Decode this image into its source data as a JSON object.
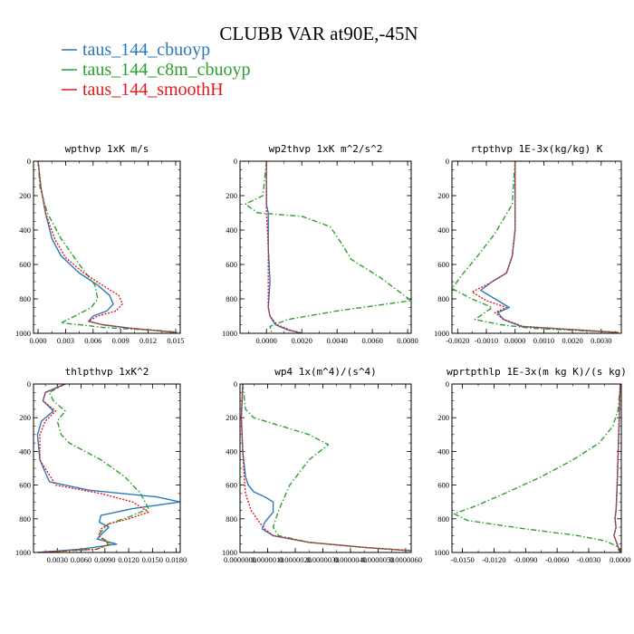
{
  "figure": {
    "title": "CLUBB VAR at90E,-45N",
    "legend": [
      {
        "label": "taus_144_cbuoyp",
        "color": "#2a7ab9",
        "dash": "solid"
      },
      {
        "label": "taus_144_c8m_cbuoyp",
        "color": "#2ca02c",
        "dash": "dashdot"
      },
      {
        "label": "taus_144_smoothH",
        "color": "#e31a1c",
        "dash": "dotted"
      }
    ]
  },
  "chart_data": [
    {
      "type": "line",
      "title": "wpthvp   1xK m/s",
      "xlim": [
        -0.0005,
        0.0155
      ],
      "ylim": [
        1000,
        0
      ],
      "xticks": [
        0.0,
        0.003,
        0.006,
        0.009,
        0.012,
        0.015
      ],
      "xtick_labels": [
        "0.000",
        "0.003",
        "0.006",
        "0.009",
        "0.012",
        "0.015"
      ],
      "yticks": [
        0,
        200,
        400,
        600,
        800,
        1000
      ],
      "ytick_labels": [
        "0",
        "200",
        "400",
        "600",
        "800",
        "1000"
      ],
      "series": [
        {
          "name": "taus_144_cbuoyp",
          "x": [
            0.0,
            0.0003,
            0.0008,
            0.0015,
            0.0025,
            0.0045,
            0.0065,
            0.0078,
            0.0082,
            0.0075,
            0.006,
            0.0055,
            0.007,
            0.01,
            0.013,
            0.015
          ],
          "y": [
            0,
            150,
            300,
            450,
            550,
            650,
            720,
            780,
            830,
            870,
            900,
            930,
            950,
            970,
            985,
            995
          ]
        },
        {
          "name": "taus_144_c8m_cbuoyp",
          "x": [
            0.0,
            0.0002,
            0.001,
            0.0025,
            0.0045,
            0.0062,
            0.0065,
            0.0058,
            0.004,
            0.0025,
            0.0045,
            0.007,
            0.01,
            0.0135,
            0.0155
          ],
          "y": [
            0,
            150,
            300,
            450,
            600,
            720,
            800,
            850,
            900,
            940,
            950,
            965,
            975,
            985,
            995
          ]
        },
        {
          "name": "taus_144_smoothH",
          "x": [
            0.0,
            0.0003,
            0.0008,
            0.0018,
            0.003,
            0.005,
            0.007,
            0.0088,
            0.0092,
            0.0085,
            0.0065,
            0.0055,
            0.007,
            0.01,
            0.013,
            0.015
          ],
          "y": [
            0,
            150,
            300,
            450,
            560,
            650,
            720,
            780,
            830,
            870,
            900,
            930,
            950,
            970,
            985,
            995
          ]
        }
      ]
    },
    {
      "type": "line",
      "title": "wp2thvp   1xK m^2/s^2",
      "xlim": [
        -0.0015,
        0.0082
      ],
      "ylim": [
        1000,
        0
      ],
      "xticks": [
        0.0,
        0.002,
        0.004,
        0.006,
        0.008
      ],
      "xtick_labels": [
        "0.0000",
        "0.0020",
        "0.0040",
        "0.0060",
        "0.0080"
      ],
      "yticks": [
        0,
        200,
        400,
        600,
        800,
        1000
      ],
      "ytick_labels": [
        "0",
        "200",
        "400",
        "600",
        "800",
        "1000"
      ],
      "series": [
        {
          "name": "taus_144_cbuoyp",
          "x": [
            0.0,
            0.0,
            0.0001,
            0.0001,
            0.0002,
            0.0001,
            0.0002,
            0.0005,
            0.0012,
            0.002
          ],
          "y": [
            0,
            250,
            300,
            500,
            700,
            850,
            900,
            950,
            980,
            1000
          ]
        },
        {
          "name": "taus_144_c8m_cbuoyp",
          "x": [
            0.0,
            -0.0002,
            -0.0012,
            -0.0005,
            0.002,
            0.0036,
            0.0042,
            0.0048,
            0.0065,
            0.0082,
            0.004,
            0.0012,
            0.0002,
            0.0003
          ],
          "y": [
            0,
            200,
            250,
            300,
            320,
            380,
            470,
            570,
            680,
            810,
            870,
            920,
            960,
            1000
          ]
        },
        {
          "name": "taus_144_smoothH",
          "x": [
            0.0,
            0.0,
            0.0,
            0.0001,
            0.0001,
            0.0001,
            0.0002,
            0.0006,
            0.0013,
            0.002
          ],
          "y": [
            0,
            250,
            300,
            500,
            700,
            850,
            900,
            950,
            980,
            1000
          ]
        }
      ]
    },
    {
      "type": "line",
      "title": "rtpthvp   1E-3x(kg/kg) K",
      "xlim": [
        -0.0022,
        0.0037
      ],
      "ylim": [
        1000,
        0
      ],
      "xticks": [
        -0.002,
        -0.001,
        0.0,
        0.001,
        0.002,
        0.003
      ],
      "xtick_labels": [
        "-0.0020",
        "-0.0010",
        "0.0000",
        "0.0010",
        "0.0020",
        "0.0030"
      ],
      "yticks": [
        0,
        200,
        400,
        600,
        800,
        1000
      ],
      "ytick_labels": [
        "0",
        "200",
        "400",
        "600",
        "800",
        "1000"
      ],
      "series": [
        {
          "name": "taus_144_cbuoyp",
          "x": [
            0.0,
            0.0,
            -0.0001,
            -0.0003,
            -0.0008,
            -0.0012,
            -0.0007,
            -0.0002,
            -0.0006,
            -0.0004,
            0.0002,
            0.0036
          ],
          "y": [
            0,
            400,
            550,
            650,
            700,
            750,
            800,
            850,
            880,
            920,
            960,
            995
          ]
        },
        {
          "name": "taus_144_c8m_cbuoyp",
          "x": [
            0.0,
            -0.0001,
            -0.0007,
            -0.0013,
            -0.0018,
            -0.0022,
            -0.0015,
            -0.0008,
            -0.0014,
            -0.0005,
            0.0005,
            0.0036
          ],
          "y": [
            0,
            250,
            420,
            550,
            650,
            740,
            800,
            850,
            920,
            950,
            970,
            995
          ]
        },
        {
          "name": "taus_144_smoothH",
          "x": [
            0.0,
            0.0,
            -0.0001,
            -0.0003,
            -0.0009,
            -0.0015,
            -0.001,
            -0.0003,
            -0.0007,
            -0.0004,
            0.0003,
            0.0036
          ],
          "y": [
            0,
            400,
            550,
            650,
            710,
            760,
            810,
            850,
            880,
            920,
            960,
            995
          ]
        }
      ]
    },
    {
      "type": "line",
      "title": "thlpthvp   1xK^2",
      "xlim": [
        0.0,
        0.0185
      ],
      "ylim": [
        1000,
        0
      ],
      "xticks": [
        0.003,
        0.006,
        0.009,
        0.012,
        0.015,
        0.018
      ],
      "xtick_labels": [
        "0.0030",
        "0.0060",
        "0.0090",
        "0.0120",
        "0.0150",
        "0.0180"
      ],
      "yticks": [
        0,
        200,
        400,
        600,
        800,
        1000
      ],
      "ytick_labels": [
        "0",
        "200",
        "400",
        "600",
        "800",
        "1000"
      ],
      "series": [
        {
          "name": "taus_144_cbuoyp",
          "x": [
            0.004,
            0.0015,
            0.0012,
            0.0025,
            0.001,
            0.0005,
            0.0008,
            0.002,
            0.007,
            0.0155,
            0.0185,
            0.0125,
            0.0085,
            0.0083,
            0.0095,
            0.0088,
            0.008,
            0.0105,
            0.006,
            0.0005
          ],
          "y": [
            0,
            50,
            100,
            160,
            220,
            300,
            450,
            580,
            630,
            670,
            700,
            740,
            780,
            820,
            850,
            880,
            920,
            950,
            980,
            1000
          ]
        },
        {
          "name": "taus_144_c8m_cbuoyp",
          "x": [
            0.004,
            0.002,
            0.0025,
            0.004,
            0.003,
            0.0035,
            0.0045,
            0.0085,
            0.0115,
            0.0135,
            0.0145,
            0.012,
            0.0095,
            0.0088,
            0.0082,
            0.0098,
            0.008,
            0.0005
          ],
          "y": [
            0,
            50,
            100,
            160,
            220,
            300,
            350,
            450,
            550,
            650,
            740,
            790,
            830,
            860,
            900,
            950,
            980,
            1000
          ]
        },
        {
          "name": "taus_144_smoothH",
          "x": [
            0.004,
            0.0015,
            0.0012,
            0.0028,
            0.0015,
            0.0008,
            0.0008,
            0.0028,
            0.0085,
            0.0125,
            0.0145,
            0.012,
            0.0095,
            0.0085,
            0.0082,
            0.0095,
            0.008,
            0.0005
          ],
          "y": [
            0,
            50,
            100,
            160,
            220,
            300,
            450,
            600,
            650,
            700,
            760,
            800,
            830,
            860,
            900,
            950,
            980,
            1000
          ]
        }
      ]
    },
    {
      "type": "line",
      "title": "wp4   1x(m^4)/(s^4)",
      "xlim": [
        0.0,
        6.2e-06
      ],
      "ylim": [
        1000,
        0
      ],
      "xticks": [
        0.0,
        1e-06,
        2e-06,
        3e-06,
        4e-06,
        5e-06,
        6e-06
      ],
      "xtick_labels": [
        "0.0000000",
        "0.0000010",
        "0.0000020",
        "0.0000030",
        "0.0000040",
        "0.0000050",
        "0.0000060"
      ],
      "yticks": [
        0,
        200,
        400,
        600,
        800,
        1000
      ],
      "ytick_labels": [
        "0",
        "200",
        "400",
        "600",
        "800",
        "1000"
      ],
      "series": [
        {
          "name": "taus_144_cbuoyp",
          "x": [
            1e-07,
            5e-08,
            1e-07,
            2e-07,
            3e-07,
            5e-07,
            9e-07,
            1.2e-06,
            1.2e-06,
            9e-07,
            8e-07,
            1.2e-06,
            2.5e-06,
            4.5e-06,
            6.2e-06
          ],
          "y": [
            0,
            200,
            400,
            550,
            600,
            640,
            670,
            700,
            760,
            820,
            860,
            900,
            940,
            970,
            990
          ]
        },
        {
          "name": "taus_144_c8m_cbuoyp",
          "x": [
            1e-07,
            2e-07,
            5e-07,
            1.5e-06,
            2.5e-06,
            3.2e-06,
            2.5e-06,
            1.8e-06,
            1.4e-06,
            1.2e-06,
            1.4e-06,
            2.5e-06,
            4.5e-06,
            6.2e-06
          ],
          "y": [
            0,
            150,
            200,
            250,
            300,
            360,
            450,
            600,
            750,
            850,
            900,
            940,
            970,
            990
          ]
        },
        {
          "name": "taus_144_smoothH",
          "x": [
            1e-07,
            5e-08,
            1e-07,
            1.5e-07,
            2e-07,
            4e-07,
            7e-07,
            9e-07,
            1.2e-06,
            2.5e-06,
            4.5e-06,
            6.2e-06
          ],
          "y": [
            0,
            200,
            400,
            550,
            650,
            750,
            820,
            860,
            900,
            940,
            970,
            990
          ]
        }
      ]
    },
    {
      "type": "line",
      "title": "wprtpthlp   1E-3x(m kg K)/(s kg)",
      "xlim": [
        -0.016,
        0.0001
      ],
      "ylim": [
        1000,
        0
      ],
      "xticks": [
        -0.015,
        -0.012,
        -0.009,
        -0.006,
        -0.003,
        0.0
      ],
      "xtick_labels": [
        "-0.0150",
        "-0.0120",
        "-0.0090",
        "-0.0060",
        "-0.0030",
        "0.0000"
      ],
      "yticks": [
        0,
        200,
        400,
        600,
        800,
        1000
      ],
      "ytick_labels": [
        "0",
        "200",
        "400",
        "600",
        "800",
        "1000"
      ],
      "series": [
        {
          "name": "taus_144_cbuoyp",
          "x": [
            0.0,
            -0.0001,
            -0.0002,
            -0.0003,
            -0.0004,
            -0.0005,
            -0.0004,
            -0.0006,
            -0.0003,
            0.0
          ],
          "y": [
            0,
            200,
            400,
            600,
            750,
            800,
            850,
            900,
            950,
            1000
          ]
        },
        {
          "name": "taus_144_c8m_cbuoyp",
          "x": [
            0.0,
            -0.0002,
            -0.0007,
            -0.002,
            -0.0045,
            -0.0075,
            -0.011,
            -0.014,
            -0.0158,
            -0.0145,
            -0.009,
            -0.004,
            -0.0015,
            -0.0004,
            0.0
          ],
          "y": [
            0,
            150,
            250,
            350,
            450,
            550,
            650,
            730,
            770,
            810,
            860,
            900,
            930,
            960,
            1000
          ]
        },
        {
          "name": "taus_144_smoothH",
          "x": [
            0.0,
            -0.0001,
            -0.0002,
            -0.0003,
            -0.0004,
            -0.0005,
            -0.0004,
            -0.0006,
            -0.0003,
            0.0
          ],
          "y": [
            0,
            200,
            400,
            600,
            750,
            800,
            850,
            900,
            950,
            1000
          ]
        }
      ]
    }
  ]
}
